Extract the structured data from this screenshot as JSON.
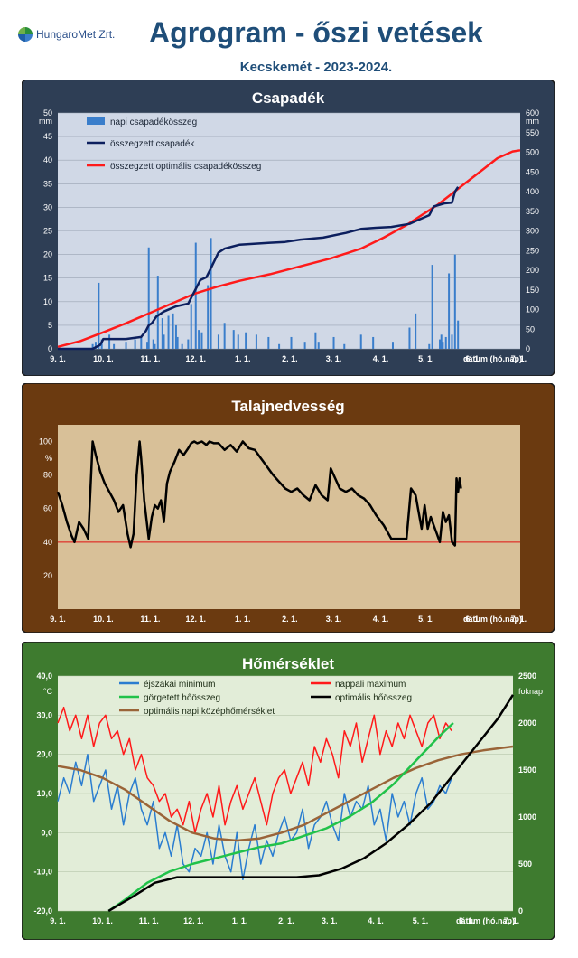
{
  "header": {
    "logo_text": "HungaroMet Zrt.",
    "title": "Agrogram - őszi vetések",
    "subtitle": "Kecskemét - 2023-2024."
  },
  "x_axis": {
    "ticks": [
      "9. 1.",
      "10. 1.",
      "11. 1.",
      "12. 1.",
      "1. 1.",
      "2. 1.",
      "3. 1.",
      "4. 1.",
      "5. 1.",
      "6. 1.",
      "7. 1."
    ],
    "label": "dátum (hó.nap)"
  },
  "colors": {
    "precip_bg": "#2e3e55",
    "soil_bg": "#6b3a10",
    "temp_bg": "#3e7b2f",
    "precip_plot": "#d0d8e6",
    "soil_plot": "#d8c098",
    "temp_plot": "#e2edd8"
  },
  "chart_data": [
    {
      "type": "bar",
      "title": "Csapadék",
      "ylabel": "mm",
      "y2label": "mm",
      "ylim": [
        0,
        50
      ],
      "y2lim": [
        0,
        600
      ],
      "yticks": [
        "0",
        "5",
        "10",
        "15",
        "20",
        "25",
        "30",
        "35",
        "40",
        "45",
        "50"
      ],
      "y2ticks": [
        "0",
        "50",
        "100",
        "150",
        "200",
        "250",
        "300",
        "350",
        "400",
        "450",
        "500",
        "550",
        "600"
      ],
      "legend": [
        "napi csapadékösszeg",
        "összegzett csapadék",
        "összegzett optimális csapadékösszeg"
      ],
      "series": [
        {
          "name": "napi csapadékösszeg",
          "axis": "left",
          "color": "#3a7ecb",
          "x": [
            23,
            25,
            27,
            29,
            34,
            37,
            45,
            51,
            55,
            59,
            60,
            63,
            64,
            66,
            69,
            70,
            73,
            76,
            78,
            79,
            82,
            86,
            88,
            91,
            93,
            95,
            99,
            101,
            106,
            110,
            116,
            119,
            124,
            131,
            139,
            146,
            154,
            163,
            170,
            172,
            182,
            189,
            200,
            208,
            221,
            232,
            236,
            245,
            247,
            252,
            253,
            254,
            256,
            258,
            260,
            262,
            264
          ],
          "values": [
            1.0,
            1.5,
            14.0,
            2.0,
            3.0,
            1.0,
            1.5,
            2.0,
            2.5,
            1.5,
            21.5,
            2.0,
            1.0,
            15.5,
            6.5,
            3.0,
            7.0,
            7.5,
            5.0,
            2.5,
            1.0,
            2.0,
            9.5,
            22.5,
            4.0,
            3.5,
            13.5,
            23.5,
            3.0,
            5.5,
            4.0,
            3.0,
            3.5,
            3.0,
            2.5,
            1.0,
            2.5,
            1.5,
            3.5,
            1.5,
            2.5,
            1.0,
            3.0,
            2.5,
            1.5,
            4.5,
            7.5,
            1.0,
            17.8,
            2.0,
            3.0,
            1.5,
            2.5,
            16.0,
            3.0,
            20.0,
            6.0
          ]
        },
        {
          "name": "összegzett csapadék",
          "axis": "right",
          "color": "#0c1f5e",
          "x": [
            0,
            23,
            28,
            30,
            45,
            55,
            58,
            60,
            62,
            65,
            70,
            78,
            86,
            90,
            94,
            98,
            101,
            106,
            110,
            120,
            140,
            150,
            160,
            175,
            190,
            200,
            210,
            220,
            232,
            236,
            245,
            248,
            255,
            260,
            262,
            264
          ],
          "values": [
            0,
            0,
            10,
            25,
            25,
            30,
            45,
            60,
            65,
            82,
            95,
            108,
            115,
            145,
            175,
            182,
            205,
            245,
            255,
            265,
            270,
            272,
            278,
            283,
            295,
            305,
            308,
            310,
            318,
            325,
            340,
            362,
            370,
            372,
            400,
            412
          ]
        },
        {
          "name": "összegzett optimális csapadékösszeg",
          "axis": "right",
          "color": "#ff1a1a",
          "x": [
            0,
            15,
            30,
            45,
            60,
            75,
            90,
            105,
            120,
            140,
            160,
            180,
            200,
            215,
            230,
            240,
            250,
            260,
            270,
            280,
            290,
            300,
            305
          ],
          "values": [
            5,
            20,
            42,
            65,
            90,
            115,
            140,
            158,
            173,
            190,
            210,
            230,
            255,
            283,
            315,
            340,
            365,
            395,
            425,
            455,
            485,
            502,
            505
          ]
        }
      ]
    },
    {
      "type": "line",
      "title": "Talajnedvesség",
      "ylabel": "%",
      "ylim": [
        0,
        110
      ],
      "yticks": [
        "20",
        "40",
        "60",
        "80",
        "100"
      ],
      "reference_line": 40,
      "series": [
        {
          "name": "talajnedvesség",
          "color": "#000000",
          "x": [
            0,
            3,
            6,
            9,
            11,
            14,
            17,
            20,
            23,
            25,
            28,
            31,
            34,
            37,
            40,
            43,
            46,
            48,
            50,
            52,
            54,
            55,
            57,
            60,
            62,
            64,
            66,
            68,
            70,
            72,
            74,
            77,
            80,
            83,
            86,
            88,
            90,
            92,
            95,
            98,
            100,
            103,
            106,
            110,
            114,
            118,
            122,
            126,
            130,
            134,
            138,
            142,
            146,
            150,
            154,
            158,
            162,
            166,
            170,
            174,
            178,
            180,
            182,
            186,
            190,
            194,
            198,
            202,
            206,
            210,
            215,
            220,
            225,
            230,
            233,
            236,
            238,
            240,
            242,
            244,
            246,
            248,
            250,
            252,
            254,
            256,
            258,
            260,
            262,
            263,
            264,
            265,
            266
          ],
          "values": [
            70,
            62,
            52,
            44,
            40,
            52,
            48,
            42,
            100,
            92,
            82,
            75,
            70,
            65,
            58,
            62,
            45,
            37,
            45,
            80,
            100,
            90,
            65,
            42,
            55,
            62,
            60,
            65,
            52,
            75,
            82,
            88,
            95,
            92,
            96,
            99,
            100,
            99,
            100,
            98,
            100,
            99,
            99,
            95,
            98,
            94,
            100,
            96,
            95,
            90,
            85,
            80,
            76,
            72,
            70,
            72,
            68,
            65,
            74,
            68,
            65,
            84,
            80,
            72,
            70,
            72,
            68,
            66,
            62,
            56,
            50,
            42,
            42,
            42,
            72,
            68,
            58,
            48,
            62,
            48,
            55,
            50,
            45,
            40,
            58,
            52,
            56,
            40,
            38,
            78,
            70,
            78,
            72
          ]
        }
      ]
    },
    {
      "type": "line",
      "title": "Hőmérséklet",
      "ylabel": "°C",
      "y2label": "foknap",
      "ylim": [
        -20,
        40
      ],
      "y2lim": [
        0,
        2500
      ],
      "yticks": [
        "-20,0",
        "-10,0",
        "0,0",
        "10,0",
        "20,0",
        "30,0",
        "40,0"
      ],
      "y2ticks": [
        "0",
        "500",
        "1000",
        "1500",
        "2000",
        "2500"
      ],
      "legend": [
        "éjszakai minimum",
        "nappali maximum",
        "görgetett hőösszeg",
        "optimális hőösszeg",
        "optimális napi középhőmérséklet"
      ],
      "series": [
        {
          "name": "éjszakai minimum",
          "axis": "left",
          "color": "#2a7dd0",
          "x": [
            0,
            4,
            8,
            12,
            16,
            20,
            24,
            28,
            32,
            36,
            40,
            44,
            48,
            52,
            56,
            60,
            64,
            68,
            72,
            76,
            80,
            84,
            88,
            92,
            96,
            100,
            104,
            108,
            112,
            116,
            120,
            124,
            128,
            132,
            136,
            140,
            144,
            148,
            152,
            156,
            160,
            164,
            168,
            172,
            176,
            180,
            184,
            188,
            192,
            196,
            200,
            204,
            208,
            212,
            216,
            220,
            224,
            228,
            232,
            236,
            240,
            244,
            248,
            252,
            256,
            260,
            264
          ],
          "values": [
            8,
            14,
            10,
            18,
            12,
            20,
            8,
            12,
            16,
            6,
            12,
            2,
            10,
            14,
            6,
            2,
            8,
            -4,
            0,
            -6,
            2,
            -8,
            -10,
            -4,
            -6,
            0,
            -8,
            2,
            -6,
            -10,
            0,
            -12,
            -4,
            2,
            -8,
            -2,
            -6,
            0,
            4,
            -2,
            0,
            6,
            -4,
            2,
            4,
            8,
            2,
            -2,
            10,
            4,
            8,
            6,
            12,
            2,
            6,
            -2,
            10,
            4,
            8,
            2,
            10,
            14,
            6,
            8,
            12,
            10,
            14
          ]
        },
        {
          "name": "nappali maximum",
          "axis": "left",
          "color": "#ff1a1a",
          "x": [
            0,
            4,
            8,
            12,
            16,
            20,
            24,
            28,
            32,
            36,
            40,
            44,
            48,
            52,
            56,
            60,
            64,
            68,
            72,
            76,
            80,
            84,
            88,
            92,
            96,
            100,
            104,
            108,
            112,
            116,
            120,
            124,
            128,
            132,
            136,
            140,
            144,
            148,
            152,
            156,
            160,
            164,
            168,
            172,
            176,
            180,
            184,
            188,
            192,
            196,
            200,
            204,
            208,
            212,
            216,
            220,
            224,
            228,
            232,
            236,
            240,
            244,
            248,
            252,
            256,
            260,
            264
          ],
          "values": [
            28,
            32,
            26,
            30,
            24,
            30,
            22,
            28,
            30,
            24,
            26,
            20,
            24,
            16,
            20,
            14,
            12,
            8,
            10,
            4,
            6,
            2,
            8,
            0,
            6,
            10,
            4,
            12,
            2,
            8,
            12,
            6,
            10,
            14,
            8,
            2,
            10,
            14,
            16,
            10,
            14,
            18,
            12,
            22,
            18,
            24,
            20,
            14,
            26,
            22,
            28,
            18,
            24,
            30,
            20,
            26,
            22,
            28,
            24,
            30,
            26,
            22,
            28,
            30,
            24,
            28,
            26
          ]
        },
        {
          "name": "görgetett hőösszeg",
          "axis": "right",
          "color": "#21c24a",
          "x": [
            34,
            45,
            60,
            75,
            90,
            105,
            120,
            135,
            150,
            165,
            180,
            195,
            210,
            225,
            240,
            255,
            265
          ],
          "values": [
            0,
            120,
            300,
            420,
            500,
            560,
            620,
            680,
            720,
            800,
            880,
            1000,
            1150,
            1350,
            1600,
            1850,
            2000
          ]
        },
        {
          "name": "optimális hőösszeg",
          "axis": "right",
          "color": "#000000",
          "x": [
            34,
            50,
            65,
            80,
            100,
            130,
            160,
            175,
            190,
            205,
            220,
            235,
            250,
            265,
            280,
            295,
            305
          ],
          "values": [
            0,
            150,
            300,
            360,
            360,
            360,
            360,
            380,
            450,
            560,
            720,
            920,
            1150,
            1450,
            1750,
            2050,
            2300
          ]
        },
        {
          "name": "optimális napi középhőmérséklet",
          "axis": "left",
          "color": "#9a6438",
          "x": [
            0,
            15,
            30,
            45,
            60,
            75,
            90,
            105,
            120,
            135,
            150,
            165,
            180,
            195,
            210,
            225,
            240,
            255,
            270,
            285,
            305
          ],
          "values": [
            17,
            16,
            14,
            11,
            7,
            3,
            0,
            -1.5,
            -2,
            -1.5,
            0,
            2,
            5,
            8,
            11,
            14,
            16.5,
            18.5,
            20,
            21,
            22
          ]
        }
      ]
    }
  ]
}
